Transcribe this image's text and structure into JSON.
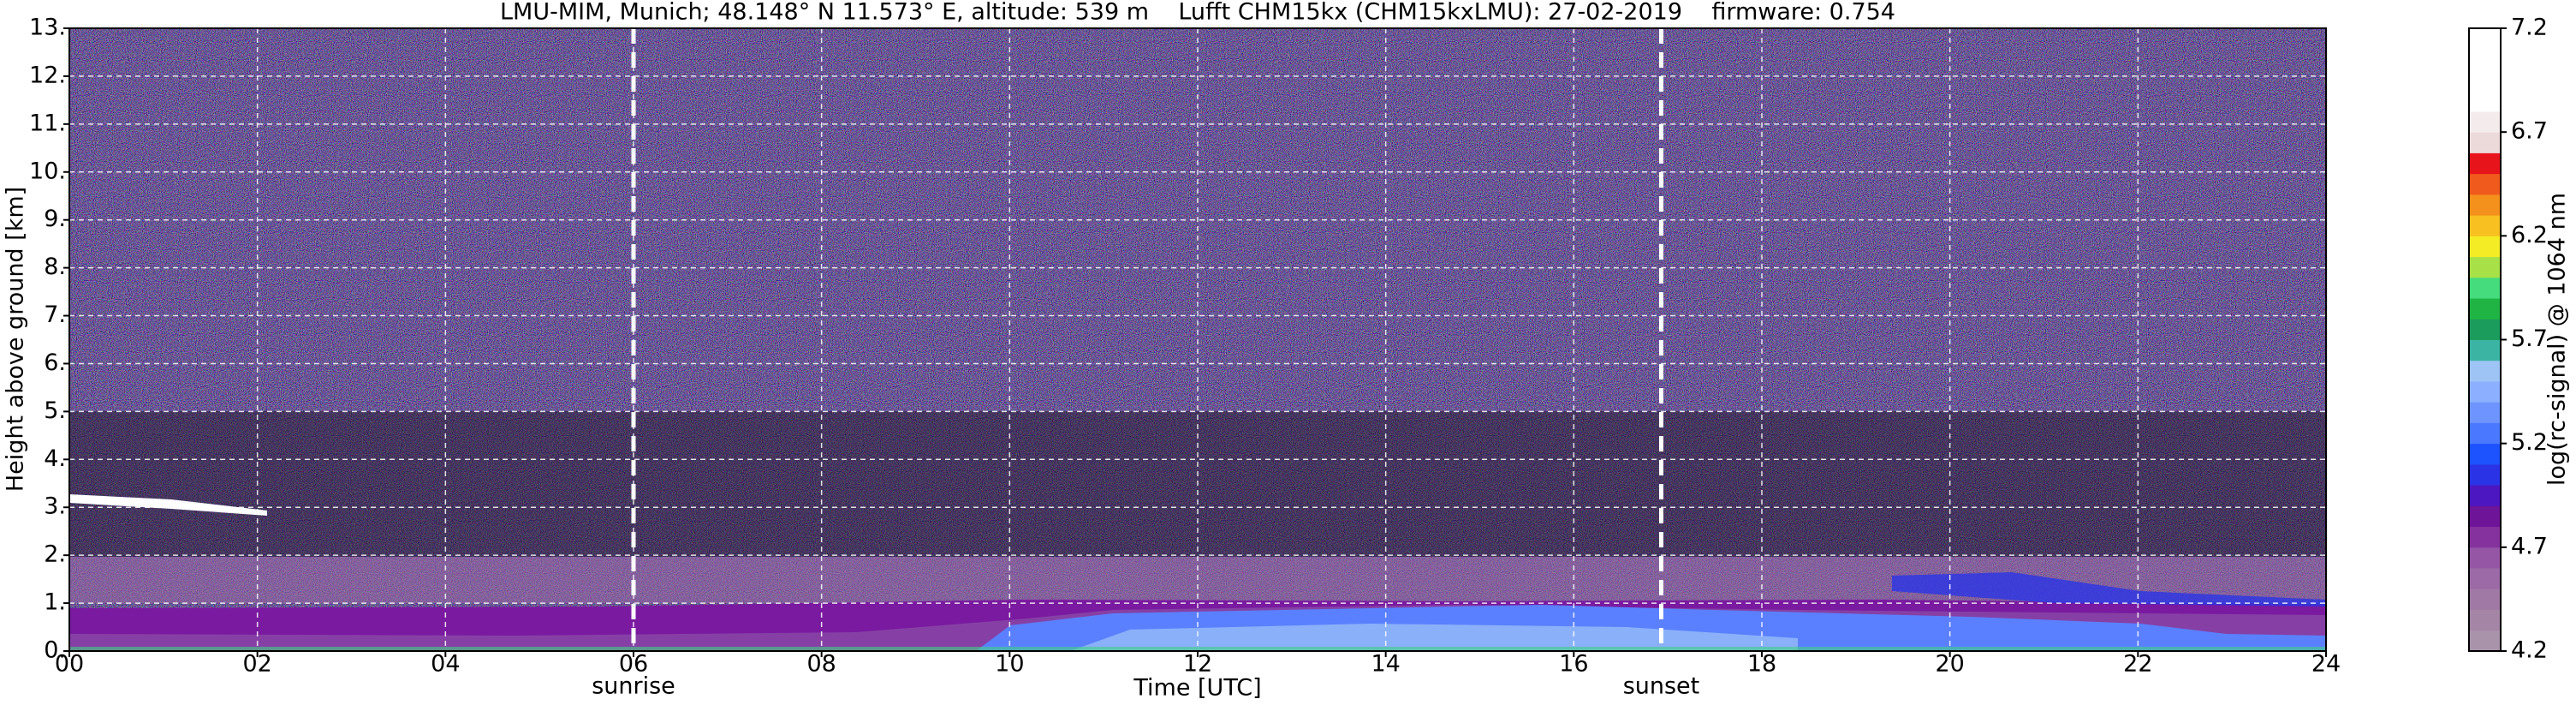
{
  "chart_data": {
    "type": "heatmap",
    "title": "LMU-MIM, Munich; 48.148° N 11.573° E, altitude: 539 m    Lufft CHM15kx (CHM15kxLMU): 27-02-2019    firmware: 0.754",
    "xlabel": "Time [UTC]",
    "ylabel": "Height above ground [km]",
    "xlim": [
      0,
      24
    ],
    "xticks": [
      {
        "value": 0,
        "label": "00"
      },
      {
        "value": 2,
        "label": "02"
      },
      {
        "value": 4,
        "label": "04"
      },
      {
        "value": 6,
        "label": "06"
      },
      {
        "value": 8,
        "label": "08"
      },
      10,
      12,
      14,
      16,
      18,
      20,
      22,
      24
    ],
    "ylim": [
      0,
      13
    ],
    "yticks": [
      {
        "value": 0,
        "label": "0."
      },
      {
        "value": 1,
        "label": "1."
      },
      {
        "value": 2,
        "label": "2."
      },
      {
        "value": 3,
        "label": "3."
      },
      {
        "value": 4,
        "label": "4."
      },
      {
        "value": 5,
        "label": "5."
      },
      {
        "value": 6,
        "label": "6."
      },
      {
        "value": 7,
        "label": "7."
      },
      {
        "value": 8,
        "label": "8."
      },
      {
        "value": 9,
        "label": "9."
      },
      {
        "value": 10,
        "label": "10."
      },
      {
        "value": 11,
        "label": "11."
      },
      {
        "value": 12,
        "label": "12."
      },
      {
        "value": 13,
        "label": "13."
      }
    ],
    "grid": true,
    "annotations": [
      {
        "x": 6,
        "label": "sunrise"
      },
      {
        "x": 16.93,
        "label": "sunset"
      }
    ],
    "colorbar": {
      "label": "log(rc-signal) @ 1064 nm",
      "clim": [
        4.2,
        7.2
      ],
      "ticks": [
        4.2,
        4.7,
        5.2,
        5.7,
        6.2,
        6.7,
        7.2
      ],
      "colors": [
        "#a993ab",
        "#a585a6",
        "#a079a4",
        "#9c6aa6",
        "#9656a6",
        "#86329e",
        "#6e1498",
        "#4c16c0",
        "#2a34e6",
        "#1c52ff",
        "#4a78ff",
        "#6e94ff",
        "#8cb0ff",
        "#9ec4f6",
        "#3cb4a4",
        "#1c9c5c",
        "#20b444",
        "#44dc7c",
        "#a8e048",
        "#f4ec24",
        "#f8c020",
        "#f4901c",
        "#f05a1c",
        "#e8141c",
        "#ecdada",
        "#f4ecec",
        "#ffffff",
        "#ffffff",
        "#ffffff",
        "#ffffff"
      ]
    }
  }
}
